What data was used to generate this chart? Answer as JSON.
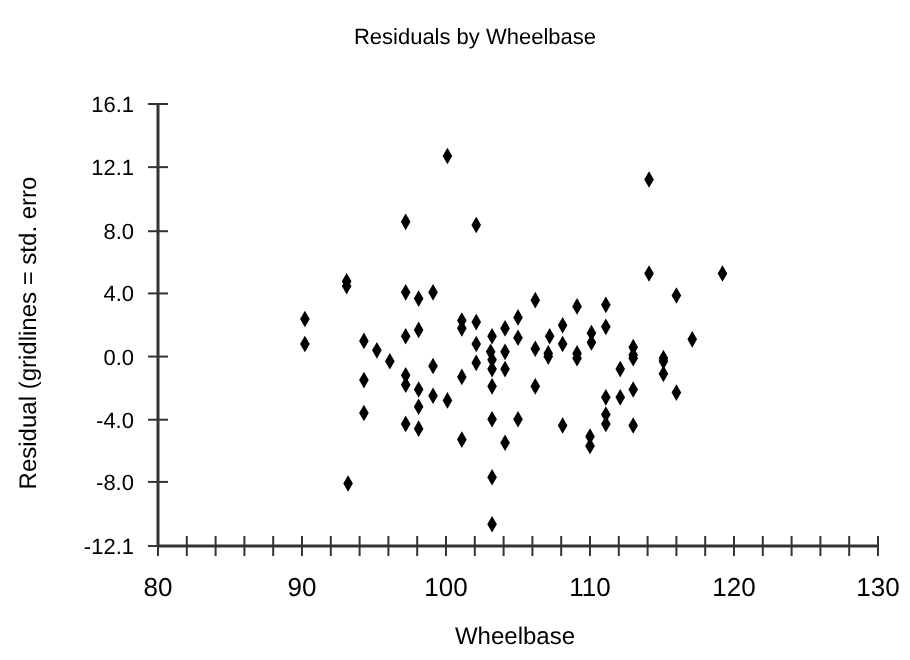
{
  "chart_data": {
    "type": "scatter",
    "title": "Residuals by Wheelbase",
    "xlabel": "Wheelbase",
    "ylabel": "Residual (gridlines = std. erro",
    "marker": "diamond",
    "grid": false,
    "series": [
      {
        "color": "#000000",
        "x": [
          100.1,
          97.2,
          102.1,
          93.1,
          93.1,
          97.2,
          98.1,
          99.1,
          90.2,
          90.2,
          94.3,
          95.2,
          97.2,
          98.1,
          101.1,
          102.1,
          101.1,
          103.2,
          104.1,
          105.0,
          102.1,
          103.1,
          104.1,
          114.1,
          114.1,
          119.2,
          116.0,
          106.2,
          109.1,
          111.1,
          108.1,
          111.1,
          105.0,
          107.2,
          108.1,
          110.1,
          110.1,
          117.1,
          113.0,
          113.0,
          106.2,
          107.1,
          109.1,
          115.1,
          96.1,
          94.3,
          94.3,
          93.2,
          97.2,
          97.2,
          98.1,
          98.1,
          97.2,
          98.1,
          99.1,
          99.1,
          100.1,
          101.1,
          101.1,
          102.1,
          103.2,
          103.2,
          104.1,
          103.2,
          103.2,
          104.1,
          103.2,
          103.2,
          105.0,
          107.1,
          109.1,
          113.0,
          112.1,
          115.1,
          115.1,
          116.0,
          106.2,
          108.1,
          111.1,
          112.1,
          111.1,
          111.1,
          113.0,
          113.0,
          110.0,
          110.0
        ],
        "values": [
          12.8,
          8.6,
          8.4,
          4.5,
          4.8,
          4.1,
          3.7,
          4.1,
          2.4,
          0.8,
          1.0,
          0.4,
          1.3,
          1.7,
          2.3,
          2.2,
          1.8,
          1.3,
          1.8,
          2.5,
          0.8,
          0.3,
          0.3,
          11.3,
          5.3,
          5.3,
          3.9,
          3.6,
          3.2,
          3.3,
          2.0,
          1.9,
          1.2,
          1.3,
          0.8,
          1.5,
          0.9,
          1.1,
          0.6,
          0.1,
          0.5,
          0.2,
          0.2,
          -0.1,
          -0.3,
          -1.5,
          -3.6,
          -8.1,
          -1.2,
          -1.8,
          -2.1,
          -3.2,
          -4.3,
          -4.6,
          -0.6,
          -2.5,
          -2.8,
          -1.3,
          -5.3,
          -0.4,
          -0.2,
          -0.8,
          -0.8,
          -1.9,
          -4.0,
          -5.5,
          -7.7,
          -10.7,
          -4.0,
          0.0,
          -0.1,
          -0.1,
          -0.8,
          -0.3,
          -1.1,
          -2.3,
          -1.9,
          -4.4,
          -2.6,
          -2.6,
          -3.7,
          -4.3,
          -2.1,
          -4.4,
          -5.1,
          -5.7
        ]
      }
    ],
    "xlim": [
      80,
      130
    ],
    "xticks": [
      80,
      {
        "value": 82,
        "label": null
      },
      {
        "value": 84,
        "label": null
      },
      {
        "value": 86,
        "label": null
      },
      {
        "value": 88,
        "label": null
      },
      90,
      {
        "value": 92,
        "label": null
      },
      {
        "value": 94,
        "label": null
      },
      {
        "value": 96,
        "label": null
      },
      {
        "value": 98,
        "label": null
      },
      100,
      {
        "value": 102,
        "label": null
      },
      {
        "value": 104,
        "label": null
      },
      {
        "value": 106,
        "label": null
      },
      {
        "value": 108,
        "label": null
      },
      110,
      {
        "value": 112,
        "label": null
      },
      {
        "value": 114,
        "label": null
      },
      {
        "value": 116,
        "label": null
      },
      {
        "value": 118,
        "label": null
      },
      120,
      {
        "value": 122,
        "label": null
      },
      {
        "value": 124,
        "label": null
      },
      {
        "value": 126,
        "label": null
      },
      {
        "value": 128,
        "label": null
      },
      130
    ],
    "ylim": [
      -12.09,
      16.12
    ],
    "yticks": [
      {
        "value": 16.12,
        "label": "16.1"
      },
      {
        "value": 12.09,
        "label": "12.1"
      },
      {
        "value": 8.0,
        "label": "8.0"
      },
      {
        "value": 4.03,
        "label": "4.0"
      },
      {
        "value": 0,
        "label": "0.0"
      },
      {
        "value": -4.03,
        "label": "-4.0"
      },
      {
        "value": -8.0,
        "label": "-8.0"
      },
      {
        "value": -12.09,
        "label": "-12.1"
      }
    ]
  }
}
